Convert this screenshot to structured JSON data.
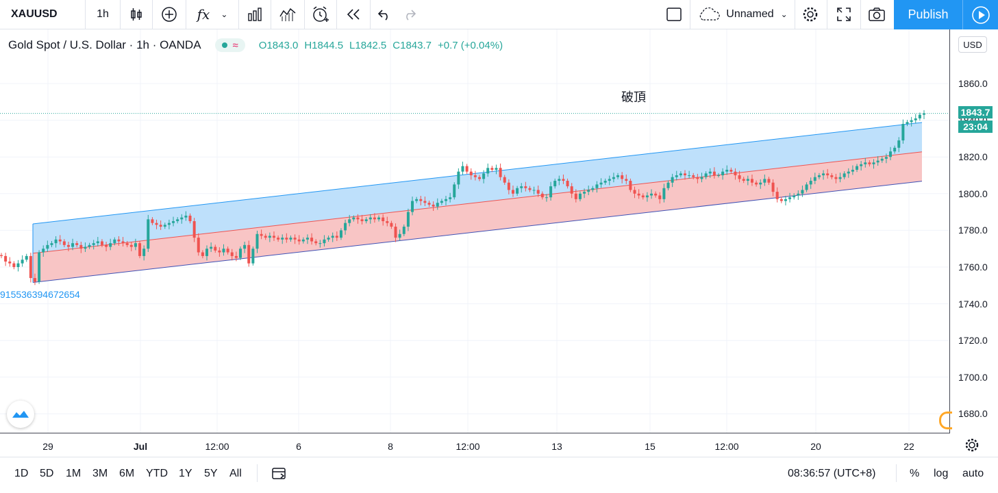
{
  "toolbar": {
    "symbol": "XAUUSD",
    "interval": "1h",
    "fx_label": "fx",
    "layout_name": "Unnamed",
    "publish_label": "Publish"
  },
  "legend": {
    "title": "Gold Spot / U.S. Dollar · 1h · OANDA",
    "open": "O1843.0",
    "high": "H1844.5",
    "low": "L1842.5",
    "close": "C1843.7",
    "change": "+0.7 (+0.04%)"
  },
  "price_axis": {
    "currency": "USD",
    "last_price": "1843.7",
    "countdown": "23:04",
    "labels": [
      "1860.0",
      "1840.0",
      "1820.0",
      "1800.0",
      "1780.0",
      "1760.0",
      "1740.0",
      "1720.0",
      "1700.0",
      "1680.0"
    ]
  },
  "time_axis": {
    "labels": [
      "29",
      "Jul",
      "12:00",
      "6",
      "8",
      "12:00",
      "13",
      "15",
      "12:00",
      "20",
      "22"
    ]
  },
  "annotation": {
    "text": "破頂",
    "channel_label": "915536394672654"
  },
  "bottom_bar": {
    "ranges": [
      "1D",
      "5D",
      "1M",
      "3M",
      "6M",
      "YTD",
      "1Y",
      "5Y",
      "All"
    ],
    "clock": "08:36:57 (UTC+8)",
    "percent": "%",
    "log": "log",
    "auto": "auto"
  },
  "colors": {
    "up": "#26a69a",
    "down": "#ef5350",
    "channel_upper_fill": "#bbdefb",
    "channel_lower_fill": "#f8c2c2",
    "accent": "#2196f3"
  },
  "chart_data": {
    "type": "candlestick",
    "ylim": [
      1665,
      1865
    ],
    "series": [
      {
        "name": "XAUUSD",
        "values": [
          1766,
          1763,
          1762,
          1760,
          1762,
          1764,
          1766,
          1754,
          1752,
          1768,
          1770,
          1772,
          1773,
          1775,
          1774,
          1772,
          1771,
          1773,
          1772,
          1770,
          1771,
          1772,
          1773,
          1774,
          1772,
          1771,
          1773,
          1775,
          1774,
          1773,
          1772,
          1771,
          1773,
          1766,
          1770,
          1786,
          1784,
          1783,
          1782,
          1783,
          1784,
          1785,
          1786,
          1787,
          1788,
          1785,
          1776,
          1768,
          1766,
          1770,
          1771,
          1769,
          1768,
          1770,
          1768,
          1766,
          1765,
          1770,
          1772,
          1762,
          1770,
          1778,
          1777,
          1776,
          1777,
          1776,
          1775,
          1776,
          1775,
          1776,
          1775,
          1774,
          1775,
          1776,
          1774,
          1773,
          1773,
          1775,
          1776,
          1777,
          1776,
          1780,
          1784,
          1786,
          1787,
          1786,
          1785,
          1786,
          1787,
          1786,
          1787,
          1785,
          1784,
          1782,
          1776,
          1778,
          1782,
          1790,
          1796,
          1797,
          1796,
          1795,
          1794,
          1793,
          1795,
          1796,
          1797,
          1798,
          1805,
          1812,
          1815,
          1812,
          1810,
          1809,
          1808,
          1811,
          1814,
          1813,
          1814,
          1809,
          1806,
          1802,
          1800,
          1803,
          1804,
          1803,
          1802,
          1802,
          1800,
          1798,
          1798,
          1804,
          1807,
          1808,
          1807,
          1804,
          1800,
          1797,
          1800,
          1801,
          1802,
          1803,
          1805,
          1806,
          1807,
          1808,
          1809,
          1810,
          1808,
          1807,
          1802,
          1800,
          1799,
          1798,
          1799,
          1800,
          1799,
          1797,
          1803,
          1806,
          1809,
          1810,
          1811,
          1810,
          1810,
          1809,
          1808,
          1809,
          1811,
          1812,
          1810,
          1810,
          1812,
          1813,
          1812,
          1810,
          1808,
          1807,
          1808,
          1806,
          1805,
          1806,
          1808,
          1806,
          1801,
          1797,
          1796,
          1797,
          1798,
          1799,
          1800,
          1802,
          1805,
          1807,
          1809,
          1810,
          1811,
          1810,
          1809,
          1808,
          1809,
          1811,
          1812,
          1813,
          1815,
          1816,
          1817,
          1816,
          1817,
          1818,
          1819,
          1820,
          1823,
          1825,
          1829,
          1838,
          1839,
          1840,
          1841,
          1843,
          1843.7
        ]
      }
    ],
    "channel": {
      "upper": [
        {
          "x": 0,
          "y": 1783.5
        },
        {
          "x": 1,
          "y": 1838.8
        }
      ],
      "middle": [
        {
          "x": 0,
          "y": 1767.5
        },
        {
          "x": 1,
          "y": 1822.8
        }
      ],
      "lower": [
        {
          "x": 0,
          "y": 1751.6
        },
        {
          "x": 1,
          "y": 1806.8
        }
      ]
    },
    "grid": true,
    "last_price": 1843.7
  }
}
